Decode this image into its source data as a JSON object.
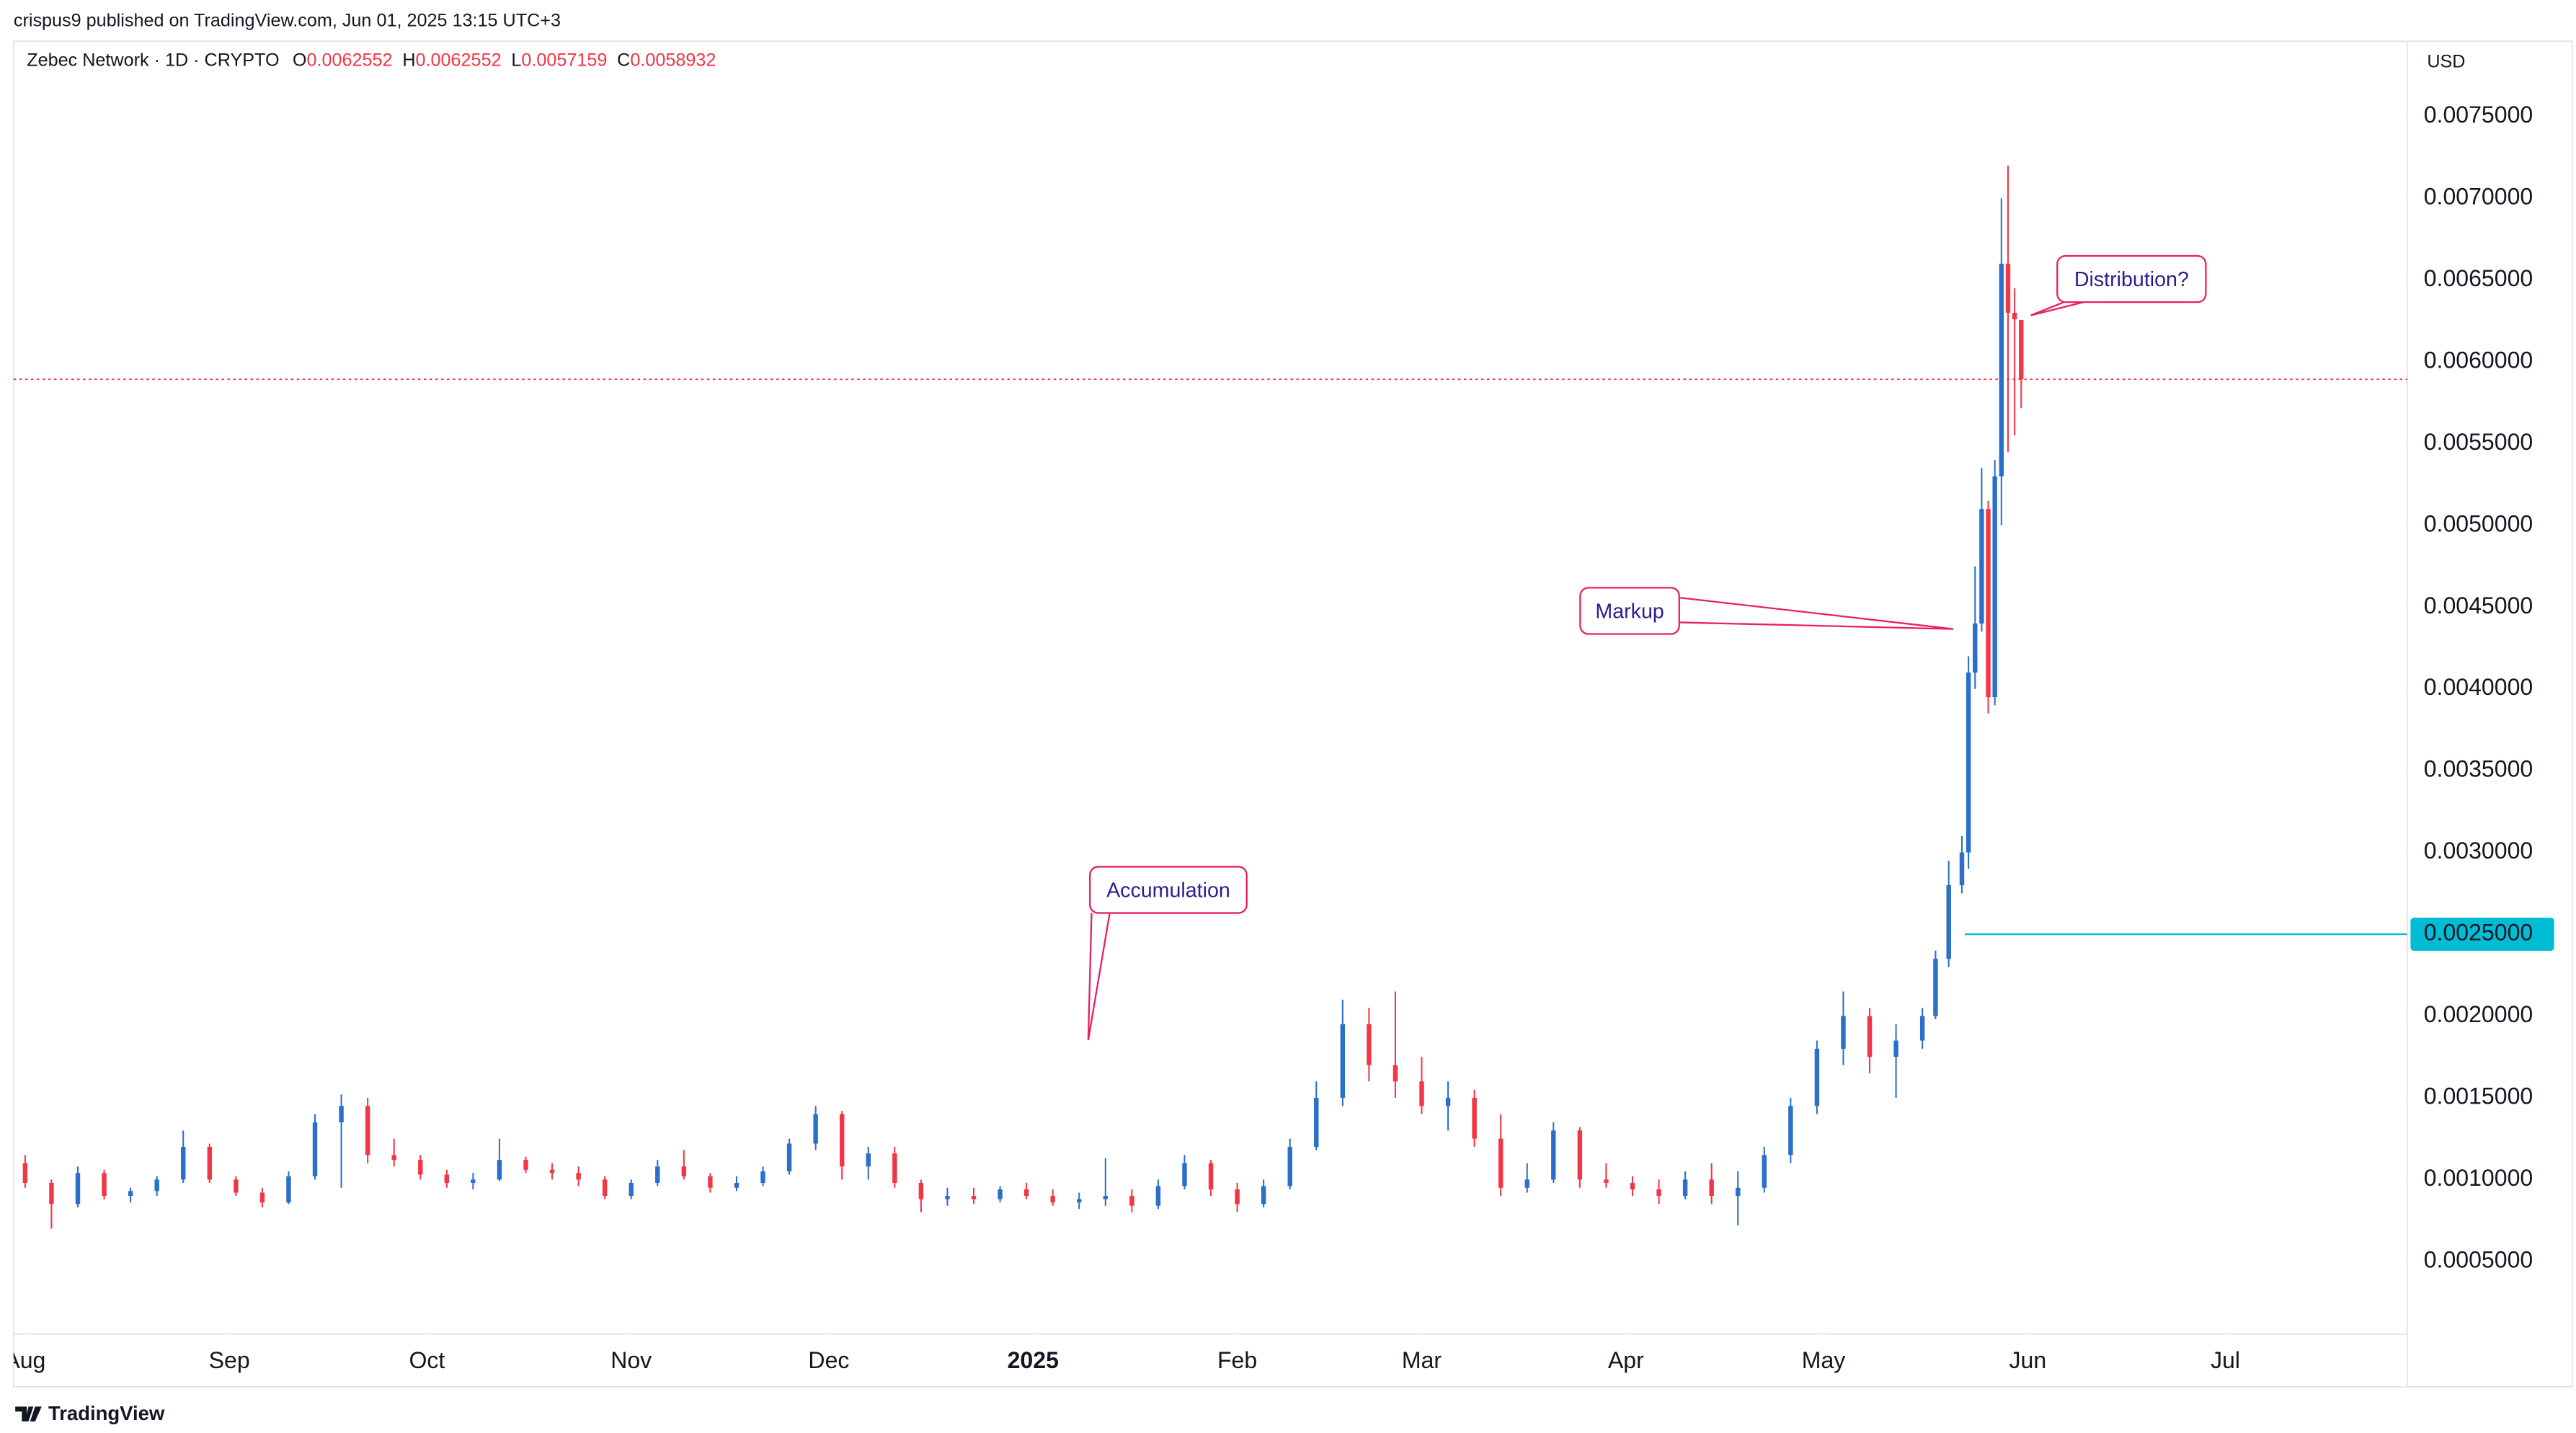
{
  "header": {
    "publisher": "crispus9 published on TradingView.com, Jun 01, 2025 13:15 UTC+3"
  },
  "footer": {
    "brand": "TradingView"
  },
  "chart_data": {
    "type": "candlestick",
    "symbol": "Zebec Network · 1D · CRYPTO",
    "ohlc_letters": [
      "O",
      "H",
      "L",
      "C"
    ],
    "currency": "USD",
    "up_color": "#2a6fc9",
    "down_color": "#f23645",
    "grid": false,
    "x": [
      0,
      4,
      8,
      12,
      16,
      20,
      24,
      28,
      32,
      36,
      40,
      44,
      48,
      52,
      56,
      60,
      64,
      68,
      72,
      76,
      80,
      84,
      88,
      92,
      96,
      100,
      104,
      108,
      112,
      116,
      120,
      124,
      128,
      132,
      136,
      140,
      144,
      148,
      152,
      156,
      160,
      164,
      168,
      172,
      176,
      180,
      184,
      188,
      192,
      196,
      200,
      204,
      208,
      212,
      216,
      220,
      224,
      228,
      232,
      236,
      240,
      244,
      248,
      252,
      256,
      260,
      264,
      268,
      272,
      276,
      280,
      284,
      288,
      290,
      292,
      294,
      295,
      296,
      297,
      298,
      299,
      300,
      301,
      302,
      303
    ],
    "open": [
      0.0011,
      0.00098,
      0.00085,
      0.00104,
      0.0009,
      0.00093,
      0.001,
      0.0012,
      0.001,
      0.00092,
      0.00086,
      0.00102,
      0.00135,
      0.00145,
      0.00115,
      0.00112,
      0.00103,
      0.00098,
      0.001,
      0.00112,
      0.00106,
      0.00104,
      0.001,
      0.0009,
      0.00098,
      0.00108,
      0.00102,
      0.00095,
      0.00098,
      0.00105,
      0.00122,
      0.0014,
      0.00108,
      0.00116,
      0.00098,
      0.00088,
      0.0009,
      0.00088,
      0.00094,
      0.0009,
      0.00086,
      0.00088,
      0.0009,
      0.00084,
      0.00096,
      0.0011,
      0.00094,
      0.00085,
      0.00096,
      0.0012,
      0.0015,
      0.00195,
      0.0017,
      0.0016,
      0.00145,
      0.0015,
      0.00125,
      0.00095,
      0.001,
      0.0013,
      0.001,
      0.00098,
      0.00094,
      0.0009,
      0.001,
      0.0009,
      0.00095,
      0.00115,
      0.00145,
      0.0018,
      0.002,
      0.00175,
      0.00185,
      0.002,
      0.00235,
      0.0028,
      0.003,
      0.0041,
      0.0044,
      0.0051,
      0.00395,
      0.0053,
      0.0066,
      0.0063,
      0.0062552
    ],
    "high": [
      0.00115,
      0.001,
      0.00108,
      0.00106,
      0.00095,
      0.00102,
      0.0013,
      0.00122,
      0.00102,
      0.00095,
      0.00105,
      0.0014,
      0.00152,
      0.0015,
      0.00125,
      0.00115,
      0.00106,
      0.00104,
      0.00125,
      0.00114,
      0.0011,
      0.00108,
      0.00102,
      0.001,
      0.00112,
      0.00118,
      0.00104,
      0.00102,
      0.00108,
      0.00125,
      0.00145,
      0.00142,
      0.0012,
      0.0012,
      0.001,
      0.00095,
      0.00095,
      0.00096,
      0.00098,
      0.00094,
      0.00092,
      0.00113,
      0.00094,
      0.001,
      0.00115,
      0.00112,
      0.00098,
      0.001,
      0.00125,
      0.0016,
      0.0021,
      0.00205,
      0.00215,
      0.00175,
      0.0016,
      0.00155,
      0.0014,
      0.0011,
      0.00135,
      0.00132,
      0.0011,
      0.00102,
      0.001,
      0.00105,
      0.0011,
      0.00105,
      0.0012,
      0.0015,
      0.00185,
      0.00215,
      0.00205,
      0.00195,
      0.00205,
      0.0024,
      0.00295,
      0.0031,
      0.0042,
      0.00475,
      0.00535,
      0.00515,
      0.0054,
      0.007,
      0.0072,
      0.00645,
      0.0062552
    ],
    "low": [
      0.00095,
      0.0007,
      0.00083,
      0.00088,
      0.00086,
      0.0009,
      0.00098,
      0.00098,
      0.0009,
      0.00083,
      0.00085,
      0.001,
      0.00095,
      0.0011,
      0.00108,
      0.001,
      0.00095,
      0.00094,
      0.00099,
      0.00104,
      0.001,
      0.00096,
      0.00088,
      0.00088,
      0.00096,
      0.001,
      0.00092,
      0.00093,
      0.00096,
      0.00103,
      0.00118,
      0.001,
      0.001,
      0.00095,
      0.0008,
      0.00084,
      0.00085,
      0.00086,
      0.00088,
      0.00084,
      0.00082,
      0.00084,
      0.0008,
      0.00082,
      0.00094,
      0.0009,
      0.0008,
      0.00083,
      0.00094,
      0.00118,
      0.00145,
      0.0016,
      0.0015,
      0.0014,
      0.0013,
      0.0012,
      0.0009,
      0.00092,
      0.00098,
      0.00095,
      0.00095,
      0.0009,
      0.00085,
      0.00088,
      0.00085,
      0.00072,
      0.00092,
      0.0011,
      0.0014,
      0.0017,
      0.00165,
      0.0015,
      0.0018,
      0.00198,
      0.0023,
      0.00275,
      0.0029,
      0.004,
      0.00435,
      0.00385,
      0.0039,
      0.005,
      0.00545,
      0.00555,
      0.0057159
    ],
    "close": [
      0.00098,
      0.00085,
      0.00104,
      0.0009,
      0.00093,
      0.001,
      0.0012,
      0.001,
      0.00092,
      0.00086,
      0.00102,
      0.00135,
      0.00145,
      0.00115,
      0.00112,
      0.00103,
      0.00098,
      0.001,
      0.00112,
      0.00106,
      0.00104,
      0.001,
      0.0009,
      0.00098,
      0.00108,
      0.00102,
      0.00095,
      0.00098,
      0.00105,
      0.00122,
      0.0014,
      0.00108,
      0.00116,
      0.00098,
      0.00088,
      0.0009,
      0.00088,
      0.00094,
      0.0009,
      0.00086,
      0.00088,
      0.0009,
      0.00084,
      0.00096,
      0.0011,
      0.00094,
      0.00085,
      0.00096,
      0.0012,
      0.0015,
      0.00195,
      0.0017,
      0.0016,
      0.00145,
      0.0015,
      0.00125,
      0.00095,
      0.001,
      0.0013,
      0.001,
      0.00098,
      0.00094,
      0.0009,
      0.001,
      0.0009,
      0.00095,
      0.00115,
      0.00145,
      0.0018,
      0.002,
      0.00175,
      0.00185,
      0.002,
      0.00235,
      0.0028,
      0.003,
      0.0041,
      0.0044,
      0.0051,
      0.00395,
      0.0053,
      0.0066,
      0.0063,
      0.00626,
      0.0058932
    ],
    "xlim": [
      -1.75,
      361.6
    ],
    "xticks": [
      {
        "value": 0,
        "label": "Aug"
      },
      {
        "value": 31,
        "label": "Sep"
      },
      {
        "value": 61,
        "label": "Oct"
      },
      {
        "value": 92,
        "label": "Nov"
      },
      {
        "value": 122,
        "label": "Dec"
      },
      {
        "value": 153,
        "label": "2025"
      },
      {
        "value": 184,
        "label": "Feb"
      },
      {
        "value": 212,
        "label": "Mar"
      },
      {
        "value": 243,
        "label": "Apr"
      },
      {
        "value": 273,
        "label": "May"
      },
      {
        "value": 304,
        "label": "Jun"
      },
      {
        "value": 334,
        "label": "Jul"
      }
    ],
    "ylim": [
      5.6e-05,
      0.00796
    ],
    "yticks": [
      {
        "value": 0.0005,
        "label": "0.0005000"
      },
      {
        "value": 0.001,
        "label": "0.0010000"
      },
      {
        "value": 0.0015,
        "label": "0.0015000"
      },
      {
        "value": 0.002,
        "label": "0.0020000"
      },
      {
        "value": 0.003,
        "label": "0.0030000"
      },
      {
        "value": 0.0035,
        "label": "0.0035000"
      },
      {
        "value": 0.004,
        "label": "0.0040000"
      },
      {
        "value": 0.0045,
        "label": "0.0045000"
      },
      {
        "value": 0.005,
        "label": "0.0050000"
      },
      {
        "value": 0.0055,
        "label": "0.0055000"
      },
      {
        "value": 0.006,
        "label": "0.0060000"
      },
      {
        "value": 0.0065,
        "label": "0.0065000"
      },
      {
        "value": 0.007,
        "label": "0.0070000"
      },
      {
        "value": 0.0075,
        "label": "0.0075000"
      }
    ],
    "horizontal_line": {
      "value": 0.0025,
      "label": "0.0025000",
      "color": "#00bcd4"
    },
    "annotations": [
      "Accumulation",
      "Markup",
      "Distribution?"
    ]
  }
}
